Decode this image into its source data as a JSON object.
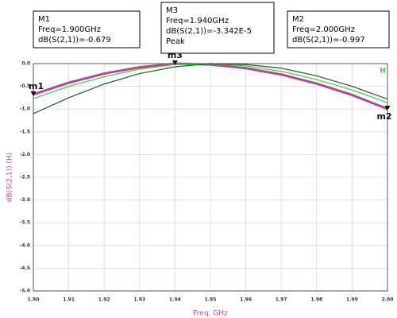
{
  "chart_data": {
    "type": "line",
    "x_label": "Freq, GHz",
    "y_label": "dB(S(2,1)) (H)",
    "x": [
      1.9,
      1.91,
      1.92,
      1.93,
      1.94,
      1.95,
      1.96,
      1.97,
      1.98,
      1.99,
      2.0
    ],
    "series": [
      {
        "color": "#b04a8c",
        "values": [
          -0.679,
          -0.42,
          -0.22,
          -0.08,
          0.0,
          -0.02,
          -0.1,
          -0.24,
          -0.44,
          -0.69,
          -0.997
        ]
      },
      {
        "name": "H",
        "color": "#3ccc3c",
        "values": [
          -0.77,
          -0.5,
          -0.29,
          -0.12,
          -0.02,
          0.0,
          -0.05,
          -0.17,
          -0.35,
          -0.58,
          -0.86
        ]
      },
      {
        "color": "#1f5a2a",
        "values": [
          -1.1,
          -0.75,
          -0.45,
          -0.22,
          -0.07,
          0.0,
          -0.02,
          -0.1,
          -0.27,
          -0.5,
          -0.78
        ]
      }
    ],
    "xlim": [
      1.9,
      2.0
    ],
    "ylim": [
      -5,
      0
    ],
    "xticks": [
      {
        "value": 1.9,
        "label": "1.90"
      },
      1.91,
      1.92,
      1.93,
      1.94,
      1.95,
      1.96,
      1.97,
      1.98,
      1.99,
      {
        "value": 2.0,
        "label": "2.00"
      }
    ],
    "yticks": [
      {
        "value": 0,
        "label": "0.0"
      },
      -0.5,
      {
        "value": -1,
        "label": "-1.0"
      },
      -1.5,
      {
        "value": -2,
        "label": "-2.0"
      },
      -2.5,
      {
        "value": -3,
        "label": "-3.0"
      },
      -3.5,
      {
        "value": -4,
        "label": "-4.0"
      },
      -4.5,
      {
        "value": -5,
        "label": "-5.0"
      }
    ],
    "grid": true,
    "markers": [
      {
        "label": "m1",
        "x": 1.9,
        "y": -0.679,
        "box": [
          "M1",
          "Freq=1.900GHz",
          "dB(S(2,1))=-0.679"
        ]
      },
      {
        "label": "m3",
        "x": 1.94,
        "y": -3.342e-05,
        "box": [
          "M3",
          "Freq=1.940GHz",
          "dB(S(2,1))=-3.342E-5",
          "Peak"
        ]
      },
      {
        "label": "m2",
        "x": 2.0,
        "y": -0.997,
        "box": [
          "M2",
          "Freq=2.000GHz",
          "dB(S(2,1))=-0.997"
        ]
      }
    ]
  }
}
